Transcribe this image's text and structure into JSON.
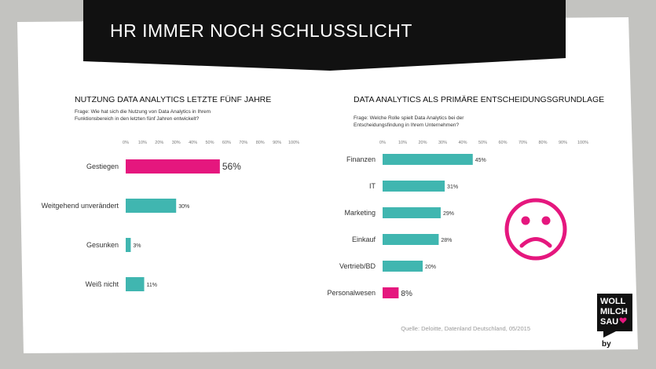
{
  "header": {
    "title": "HR IMMER NOCH SCHLUSSLICHT"
  },
  "colors": {
    "teal": "#40b6b0",
    "magenta": "#e5177e",
    "dark": "#111111",
    "page": "#ffffff",
    "wall": "#bdbdbb"
  },
  "chart_data": [
    {
      "type": "bar",
      "orientation": "horizontal",
      "title": "NUTZUNG DATA ANALYTICS LETZTE FÜNF JAHRE",
      "subtitle_lines": [
        "Frage: Wie hat sich die Nutzung von Data Analytics in Ihrem",
        "Funktionsbereich in den letzten fünf Jahren entwickelt?"
      ],
      "categories": [
        "Gestiegen",
        "Weitgehend unverändert",
        "Gesunken",
        "Weiß nicht"
      ],
      "values": [
        56,
        30,
        3,
        11
      ],
      "value_labels": [
        "56%",
        "30%",
        "3%",
        "11%"
      ],
      "highlight_index": 0,
      "xlim": [
        0,
        100
      ],
      "ticks": [
        "0%",
        "10%",
        "20%",
        "30%",
        "40%",
        "50%",
        "60%",
        "70%",
        "80%",
        "90%",
        "100%"
      ]
    },
    {
      "type": "bar",
      "orientation": "horizontal",
      "title": "DATA ANALYTICS ALS PRIMÄRE ENTSCHEIDUNGSGRUNDLAGE",
      "subtitle_lines": [
        "Frage: Welche Rolle spielt Data Analytics bei der",
        "Entscheidungsfindung in Ihrem Unternehmen?"
      ],
      "categories": [
        "Finanzen",
        "IT",
        "Marketing",
        "Einkauf",
        "Vertrieb/BD",
        "Personalwesen"
      ],
      "values": [
        45,
        31,
        29,
        28,
        20,
        8
      ],
      "value_labels": [
        "45%",
        "31%",
        "29%",
        "28%",
        "20%",
        "8%"
      ],
      "highlight_index": 5,
      "xlim": [
        0,
        100
      ],
      "ticks": [
        "0%",
        "10%",
        "20%",
        "30%",
        "40%",
        "50%",
        "60%",
        "70%",
        "80%",
        "90%",
        "100%"
      ]
    }
  ],
  "source": "Quelle: Deloitte, Datenland Deutschland, 05/2015",
  "logo": {
    "line1": "WOLL",
    "line2": "MILCH",
    "line3": "SAU",
    "by": "by"
  },
  "emoticon": "sad-face-icon"
}
